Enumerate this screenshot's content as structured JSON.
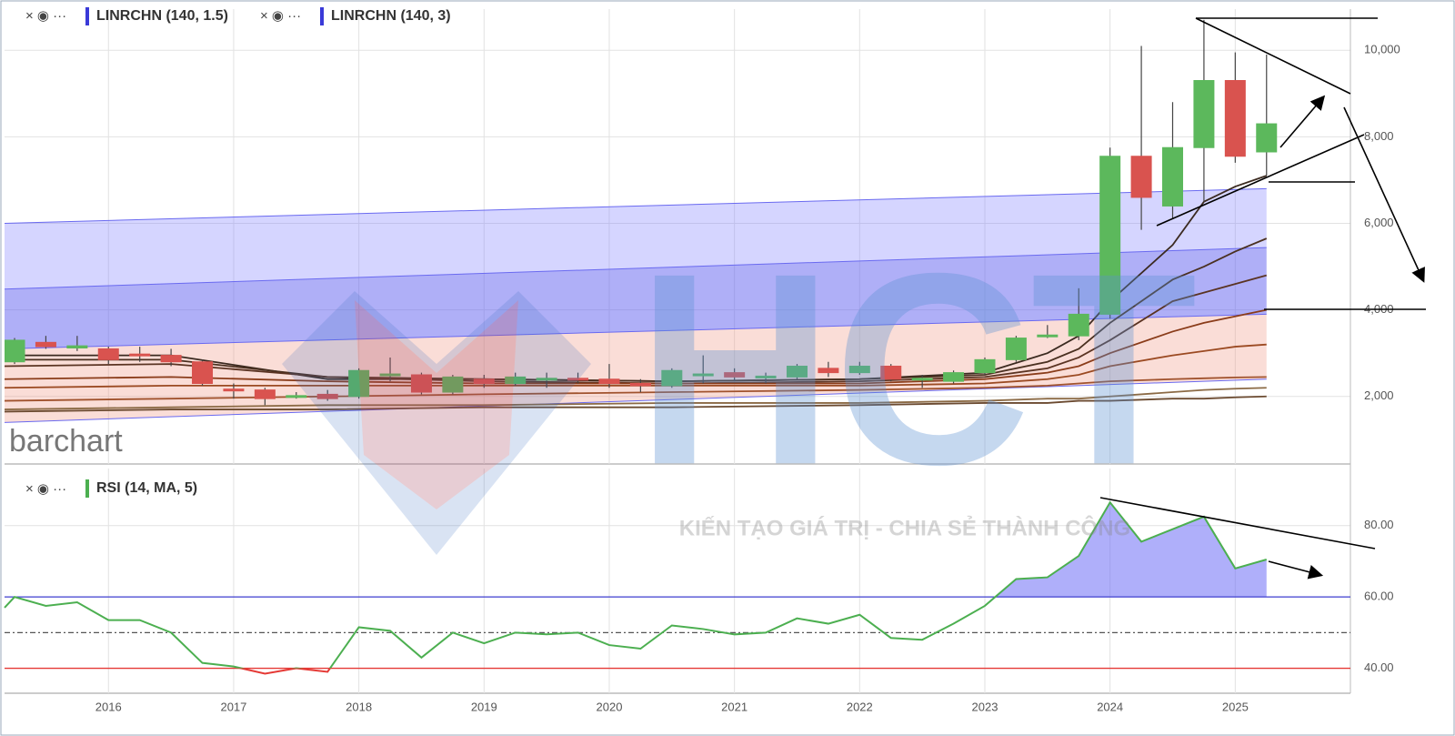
{
  "chart_data": [
    {
      "type": "candlestick",
      "legend": [
        "LINRCHN (140, 1.5)",
        "LINRCHN (140, 3)"
      ],
      "legend_color": "#3a3ad8",
      "x": [
        2015.25,
        2015.5,
        2015.75,
        2016,
        2016.25,
        2016.5,
        2016.75,
        2017,
        2017.25,
        2017.5,
        2017.75,
        2018,
        2018.25,
        2018.5,
        2018.75,
        2019,
        2019.25,
        2019.5,
        2019.75,
        2020,
        2020.25,
        2020.5,
        2020.75,
        2021,
        2021.25,
        2021.5,
        2021.75,
        2022,
        2022.25,
        2022.5,
        2022.75,
        2023,
        2023.25,
        2023.5,
        2023.75,
        2024,
        2024.25,
        2024.5,
        2024.75,
        2025,
        2025.25
      ],
      "open": [
        2800,
        3250,
        3120,
        3100,
        2980,
        2950,
        2800,
        2170,
        2150,
        1980,
        2050,
        2000,
        2480,
        2500,
        2100,
        2400,
        2300,
        2400,
        2420,
        2400,
        2300,
        2250,
        2480,
        2550,
        2450,
        2450,
        2650,
        2550,
        2700,
        2380,
        2350,
        2550,
        2850,
        3380,
        3400,
        3900,
        7550,
        6400,
        7750,
        9300,
        7650
      ],
      "close": [
        3300,
        3150,
        3170,
        2850,
        2950,
        2800,
        2300,
        2130,
        1950,
        2020,
        1950,
        2600,
        2520,
        2100,
        2450,
        2300,
        2450,
        2420,
        2400,
        2300,
        2250,
        2600,
        2520,
        2450,
        2470,
        2700,
        2550,
        2700,
        2400,
        2420,
        2550,
        2850,
        3350,
        3420,
        3900,
        7550,
        6600,
        7750,
        9300,
        7550,
        8300
      ],
      "high": [
        3350,
        3400,
        3400,
        3150,
        3150,
        3100,
        2850,
        2300,
        2200,
        2100,
        2150,
        2650,
        2900,
        2550,
        2500,
        2500,
        2550,
        2550,
        2550,
        2750,
        2400,
        2650,
        2950,
        2650,
        2550,
        2750,
        2800,
        2800,
        2750,
        2500,
        2600,
        2900,
        3400,
        3650,
        4500,
        7750,
        10100,
        8800,
        10700,
        9950,
        9900
      ],
      "low": [
        2750,
        3100,
        3050,
        2750,
        2800,
        2700,
        2250,
        1950,
        1800,
        1950,
        1900,
        1950,
        2350,
        2050,
        2050,
        2200,
        2250,
        2200,
        2300,
        2200,
        2100,
        2200,
        2300,
        2350,
        2300,
        2400,
        2450,
        2500,
        2350,
        2200,
        2300,
        2500,
        2800,
        3350,
        3300,
        3800,
        5850,
        6100,
        6500,
        7400,
        7100
      ],
      "up_color": "#5cb85c",
      "down_color": "#d9534f",
      "channel_x": [
        2015.17,
        2025.25
      ],
      "channel_lines": [
        [
          6000,
          6800
        ],
        [
          4480,
          5440
        ],
        [
          3100,
          3900
        ],
        [
          1400,
          2400
        ]
      ],
      "channel_colors": [
        "rgba(125,125,255,0.32)",
        "rgba(95,95,240,0.5)",
        "rgba(240,150,130,0.32)"
      ],
      "ma_x": [
        2015.17,
        2016.5,
        2017.75,
        2019,
        2020.5,
        2022,
        2023,
        2023.5,
        2023.75,
        2024,
        2024.5,
        2024.75,
        2025,
        2025.25
      ],
      "ma_lines": [
        {
          "color": "#3b2a20",
          "values": [
            2950,
            2950,
            2400,
            2400,
            2350,
            2400,
            2550,
            3000,
            3400,
            4200,
            5500,
            6500,
            6850,
            7100
          ]
        },
        {
          "color": "#4a3020",
          "values": [
            2850,
            2850,
            2450,
            2400,
            2350,
            2400,
            2500,
            2800,
            3100,
            3700,
            4700,
            5000,
            5350,
            5650
          ]
        },
        {
          "color": "#5a3322",
          "values": [
            2700,
            2750,
            2450,
            2350,
            2300,
            2350,
            2450,
            2650,
            2900,
            3300,
            4200,
            4400,
            4600,
            4800
          ]
        },
        {
          "color": "#8a3c1a",
          "values": [
            2400,
            2450,
            2350,
            2300,
            2300,
            2300,
            2400,
            2550,
            2700,
            3000,
            3500,
            3700,
            3850,
            4000
          ]
        },
        {
          "color": "#9b4a22",
          "values": [
            2200,
            2250,
            2250,
            2250,
            2250,
            2250,
            2300,
            2400,
            2500,
            2700,
            2950,
            3050,
            3150,
            3200
          ]
        },
        {
          "color": "#a0522d",
          "values": [
            1900,
            1950,
            2000,
            2050,
            2100,
            2150,
            2200,
            2250,
            2300,
            2350,
            2400,
            2420,
            2440,
            2450
          ]
        },
        {
          "color": "#8b6a45",
          "values": [
            1700,
            1750,
            1800,
            1800,
            1850,
            1850,
            1900,
            1950,
            1950,
            2000,
            2100,
            2150,
            2180,
            2200
          ]
        },
        {
          "color": "#6b4a30",
          "values": [
            1650,
            1700,
            1700,
            1750,
            1750,
            1800,
            1850,
            1850,
            1900,
            1900,
            1950,
            1950,
            1980,
            2000
          ]
        }
      ],
      "xlim": [
        2015.17,
        2025.92
      ],
      "ylim": [
        440,
        10950
      ],
      "yticks": [
        {
          "value": 2000,
          "label": "2,000"
        },
        {
          "value": 4000,
          "label": "4,000"
        },
        {
          "value": 6000,
          "label": "6,000"
        },
        {
          "value": 8000,
          "label": "8,000"
        },
        {
          "value": 10000,
          "label": "10,000"
        }
      ],
      "grid": true
    },
    {
      "type": "line",
      "legend": [
        "RSI (14, MA, 5)"
      ],
      "legend_color": "#4caf50",
      "x": [
        2015.17,
        2015.25,
        2015.5,
        2015.75,
        2016,
        2016.25,
        2016.5,
        2016.75,
        2017,
        2017.25,
        2017.5,
        2017.75,
        2018,
        2018.25,
        2018.5,
        2018.75,
        2019,
        2019.25,
        2019.5,
        2019.75,
        2020,
        2020.25,
        2020.5,
        2020.75,
        2021,
        2021.25,
        2021.5,
        2021.75,
        2022,
        2022.25,
        2022.5,
        2022.75,
        2023,
        2023.25,
        2023.5,
        2023.75,
        2024,
        2024.25,
        2024.5,
        2024.75,
        2025,
        2025.25
      ],
      "values": [
        57,
        60,
        57.5,
        58.5,
        53.5,
        53.5,
        50,
        41.5,
        40.5,
        38.5,
        40,
        39,
        51.5,
        50.5,
        43,
        50,
        47,
        50,
        49.5,
        50,
        46.5,
        45.5,
        52,
        51,
        49.5,
        50,
        54,
        52.5,
        55,
        48.5,
        48,
        52.5,
        57.5,
        65,
        65.5,
        71.5,
        86.5,
        75.5,
        79,
        82.5,
        68,
        70.5
      ],
      "color": "#4caf50",
      "low_color": "#e53935",
      "levels": [
        {
          "value": 60,
          "color": "#3f3fd0"
        },
        {
          "value": 50,
          "color": "#555555"
        },
        {
          "value": 40,
          "color": "#e53935"
        }
      ],
      "fill_color": "rgba(110,110,245,0.55)",
      "xlim": [
        2015.17,
        2025.92
      ],
      "ylim": [
        33,
        96
      ],
      "xticks": [
        2016,
        2017,
        2018,
        2019,
        2020,
        2021,
        2022,
        2023,
        2024,
        2025
      ],
      "yticks": [
        {
          "value": 40,
          "label": "40.00"
        },
        {
          "value": 60,
          "label": "60.00"
        },
        {
          "value": 80,
          "label": "80.00"
        }
      ],
      "grid": true
    }
  ],
  "brand": "barchart",
  "watermark": {
    "logo": "HCT",
    "slogan": "KIẾN TẠO GIÁ TRỊ - CHIA SẺ THÀNH CÔNG"
  }
}
